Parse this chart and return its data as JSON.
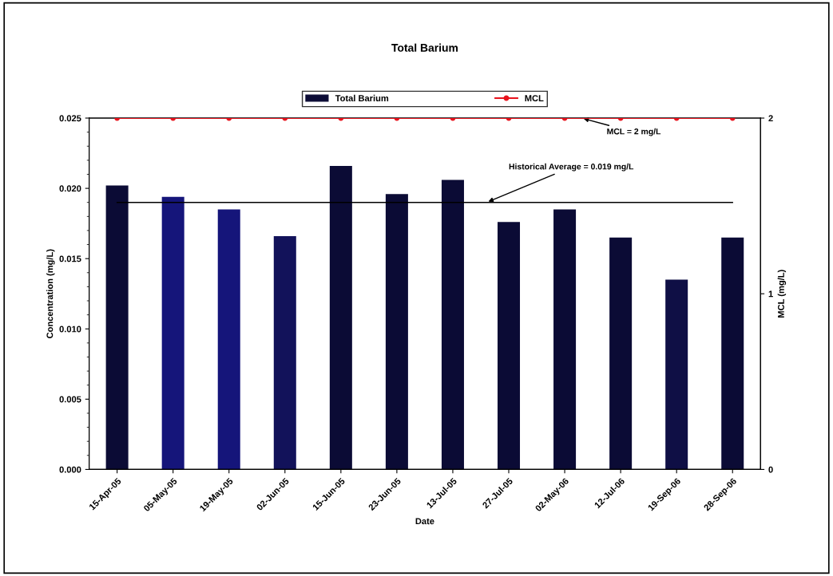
{
  "chart_data": {
    "type": "bar",
    "title": "Total Barium",
    "xlabel": "Date",
    "ylabel": "Concentration (mg/L)",
    "y2label": "MCL (mg/L)",
    "categories": [
      "15-Apr-05",
      "05-May-05",
      "19-May-05",
      "02-Jun-05",
      "15-Jun-05",
      "23-Jun-05",
      "13-Jul-05",
      "27-Jul-05",
      "02-May-06",
      "12-Jul-06",
      "19-Sep-06",
      "28-Sep-06"
    ],
    "series": [
      {
        "name": "Total Barium",
        "color": "#0b0b35",
        "colors": [
          "#0b0b35",
          "#15157a",
          "#15157a",
          "#12125a",
          "#0b0b35",
          "#0b0b35",
          "#0b0b35",
          "#0b0b35",
          "#0b0b35",
          "#0b0b35",
          "#0f0f45",
          "#0b0b35"
        ],
        "values": [
          0.0202,
          0.0194,
          0.0185,
          0.0166,
          0.0216,
          0.0196,
          0.0206,
          0.0176,
          0.0185,
          0.0165,
          0.0135,
          0.0165
        ]
      },
      {
        "name": "MCL",
        "type": "line",
        "axis": "y2",
        "color": "#e8141e",
        "marker": "circle",
        "values": [
          2,
          2,
          2,
          2,
          2,
          2,
          2,
          2,
          2,
          2,
          2,
          2
        ]
      }
    ],
    "ylim": [
      0,
      0.025
    ],
    "yticks": [
      {
        "value": 0,
        "label": "0.000"
      },
      {
        "value": 0.005,
        "label": "0.005"
      },
      {
        "value": 0.01,
        "label": "0.010"
      },
      {
        "value": 0.015,
        "label": "0.015"
      },
      {
        "value": 0.02,
        "label": "0.020"
      },
      {
        "value": 0.025,
        "label": "0.025"
      }
    ],
    "y2lim": [
      0,
      2
    ],
    "y2ticks": [
      0,
      1,
      2
    ],
    "ref_lines": [
      {
        "axis": "y",
        "value": 0.019,
        "label": "Historical Average = 0.019 mg/L",
        "color": "#000000",
        "line_style": "solid"
      }
    ],
    "annotations": [
      {
        "text": "MCL = 2 mg/L",
        "y": 0.025
      }
    ],
    "legend": "top",
    "grid": false
  }
}
